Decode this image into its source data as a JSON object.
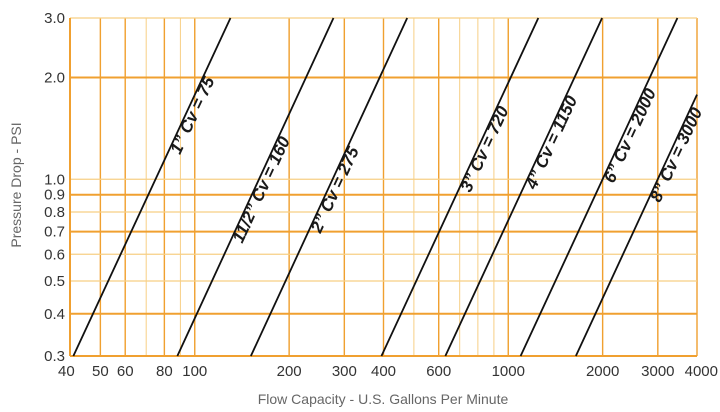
{
  "chart_data": {
    "type": "line",
    "xscale": "log",
    "yscale": "log",
    "xlabel": "Flow Capacity - U.S. Gallons Per Minute",
    "ylabel": "Pressure Drop - PSI",
    "xlim": [
      40,
      4000
    ],
    "ylim": [
      0.3,
      3.0
    ],
    "grid": true,
    "x_ticks": [
      40,
      50,
      60,
      80,
      100,
      200,
      300,
      400,
      600,
      1000,
      2000,
      3000,
      4000
    ],
    "x_tick_labels": [
      "40",
      "50",
      "60",
      "80",
      "100",
      "200",
      "300",
      "400",
      "600",
      "1000",
      "2000",
      "3000",
      "4000"
    ],
    "y_ticks": [
      0.3,
      0.4,
      0.5,
      0.6,
      0.7,
      0.8,
      0.9,
      1.0,
      2.0,
      3.0
    ],
    "y_tick_labels": [
      "0.3",
      "0.4",
      "0.5",
      "0.6",
      "0.7",
      "0.8",
      "0.9",
      "1.0",
      "2.0",
      "3.0"
    ],
    "major_gridlines_y": [
      0.4,
      0.7,
      0.9,
      2.0
    ],
    "series": [
      {
        "name": "1” Cv = 75",
        "cv": 75,
        "x": [
          41,
          130
        ],
        "y": [
          0.3,
          3.0
        ]
      },
      {
        "name": "11/2” Cv = 160",
        "cv": 160,
        "x": [
          88,
          277
        ],
        "y": [
          0.3,
          3.0
        ]
      },
      {
        "name": "2” Cv = 275",
        "cv": 275,
        "x": [
          151,
          476
        ],
        "y": [
          0.3,
          3.0
        ]
      },
      {
        "name": "3” Cv = 720",
        "cv": 720,
        "x": [
          394,
          1247
        ],
        "y": [
          0.3,
          3.0
        ]
      },
      {
        "name": "4” Cv = 1150",
        "cv": 1150,
        "x": [
          630,
          1992
        ],
        "y": [
          0.3,
          3.0
        ]
      },
      {
        "name": "6” Cv = 2000",
        "cv": 2000,
        "x": [
          1095,
          3464
        ],
        "y": [
          0.3,
          3.0
        ]
      },
      {
        "name": "8” Cv = 3000",
        "cv": 3000,
        "x": [
          1643,
          4000
        ],
        "y": [
          0.3,
          1.78
        ]
      }
    ],
    "colors": {
      "grid_major": "#f0a030",
      "grid_minor": "#f7cf85",
      "line": "#111111",
      "axis": "#f0a030"
    }
  }
}
